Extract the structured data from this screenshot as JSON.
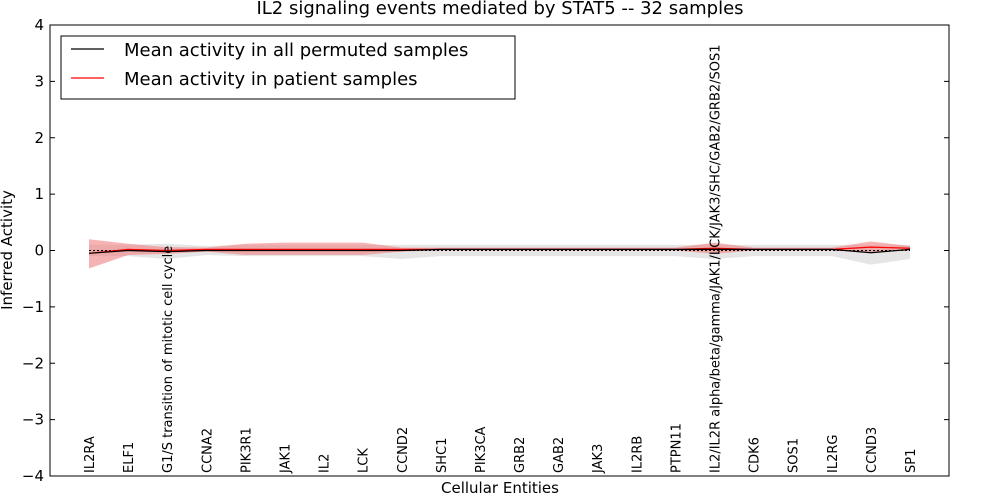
{
  "chart_data": {
    "type": "line",
    "title": "IL2 signaling events mediated by STAT5 -- 32 samples",
    "xlabel": "Cellular Entities",
    "ylabel": "Inferred Activity",
    "ylim": [
      -4,
      4
    ],
    "yticks": [
      "−4",
      "−3",
      "−2",
      "−1",
      "0",
      "1",
      "2",
      "3",
      "4"
    ],
    "grid": false,
    "legend_position": "top-left",
    "categories": [
      "IL2RA",
      "ELF1",
      "G1/S transition of mitotic cell cycle",
      "CCNA2",
      "PIK3R1",
      "JAK1",
      "IL2",
      "LCK",
      "CCND2",
      "SHC1",
      "PIK3CA",
      "GRB2",
      "GAB2",
      "JAK3",
      "IL2RB",
      "PTPN11",
      "IL2/IL2R alpha/beta/gamma/JAK1/LCK/JAK3/SHC/GAB2/GRB2/SOS1",
      "CDK6",
      "SOS1",
      "IL2RG",
      "CCND3",
      "SP1"
    ],
    "series": [
      {
        "name": "Mean activity in all permuted samples",
        "color": "#000000",
        "values": [
          0.0,
          0.0,
          -0.02,
          0.0,
          0.0,
          0.0,
          0.0,
          0.0,
          0.0,
          0.0,
          0.0,
          0.0,
          0.0,
          0.0,
          0.0,
          0.0,
          0.0,
          0.0,
          0.0,
          0.0,
          0.0,
          0.0
        ],
        "band_upper": [
          0.1,
          0.1,
          0.12,
          0.08,
          0.1,
          0.1,
          0.1,
          0.1,
          0.1,
          0.1,
          0.1,
          0.1,
          0.1,
          0.1,
          0.1,
          0.1,
          0.1,
          0.1,
          0.1,
          0.1,
          0.1,
          0.1
        ],
        "band_lower": [
          -0.1,
          -0.1,
          -0.15,
          -0.08,
          -0.1,
          -0.1,
          -0.1,
          -0.1,
          -0.15,
          -0.1,
          -0.1,
          -0.1,
          -0.1,
          -0.1,
          -0.1,
          -0.1,
          -0.15,
          -0.1,
          -0.1,
          -0.1,
          -0.25,
          -0.15
        ],
        "band_color": "#cccccc"
      },
      {
        "name": "Mean activity in patient samples",
        "color": "#ff0000",
        "values": [
          -0.05,
          0.02,
          0.0,
          0.02,
          0.02,
          0.02,
          0.02,
          0.02,
          0.02,
          0.02,
          0.02,
          0.02,
          0.02,
          0.02,
          0.02,
          0.02,
          0.04,
          0.02,
          0.02,
          0.02,
          0.06,
          0.04
        ],
        "mean_line": [
          -0.05,
          0.0,
          -0.02,
          0.0,
          0.0,
          0.0,
          0.0,
          0.0,
          0.0,
          0.02,
          0.02,
          0.02,
          0.02,
          0.02,
          0.02,
          0.02,
          0.02,
          0.02,
          0.02,
          0.02,
          -0.04,
          0.02
        ],
        "band_upper": [
          0.2,
          0.12,
          0.06,
          0.05,
          0.12,
          0.14,
          0.14,
          0.14,
          0.05,
          0.05,
          0.05,
          0.05,
          0.05,
          0.05,
          0.05,
          0.05,
          0.14,
          0.05,
          0.05,
          0.05,
          0.16,
          0.08
        ],
        "band_lower": [
          -0.32,
          -0.08,
          -0.06,
          -0.02,
          -0.08,
          -0.08,
          -0.08,
          -0.08,
          -0.02,
          0.0,
          0.0,
          0.0,
          0.0,
          0.0,
          0.0,
          0.0,
          -0.06,
          0.0,
          0.0,
          0.0,
          -0.04,
          0.0
        ],
        "band_color": "#f08080"
      }
    ]
  }
}
